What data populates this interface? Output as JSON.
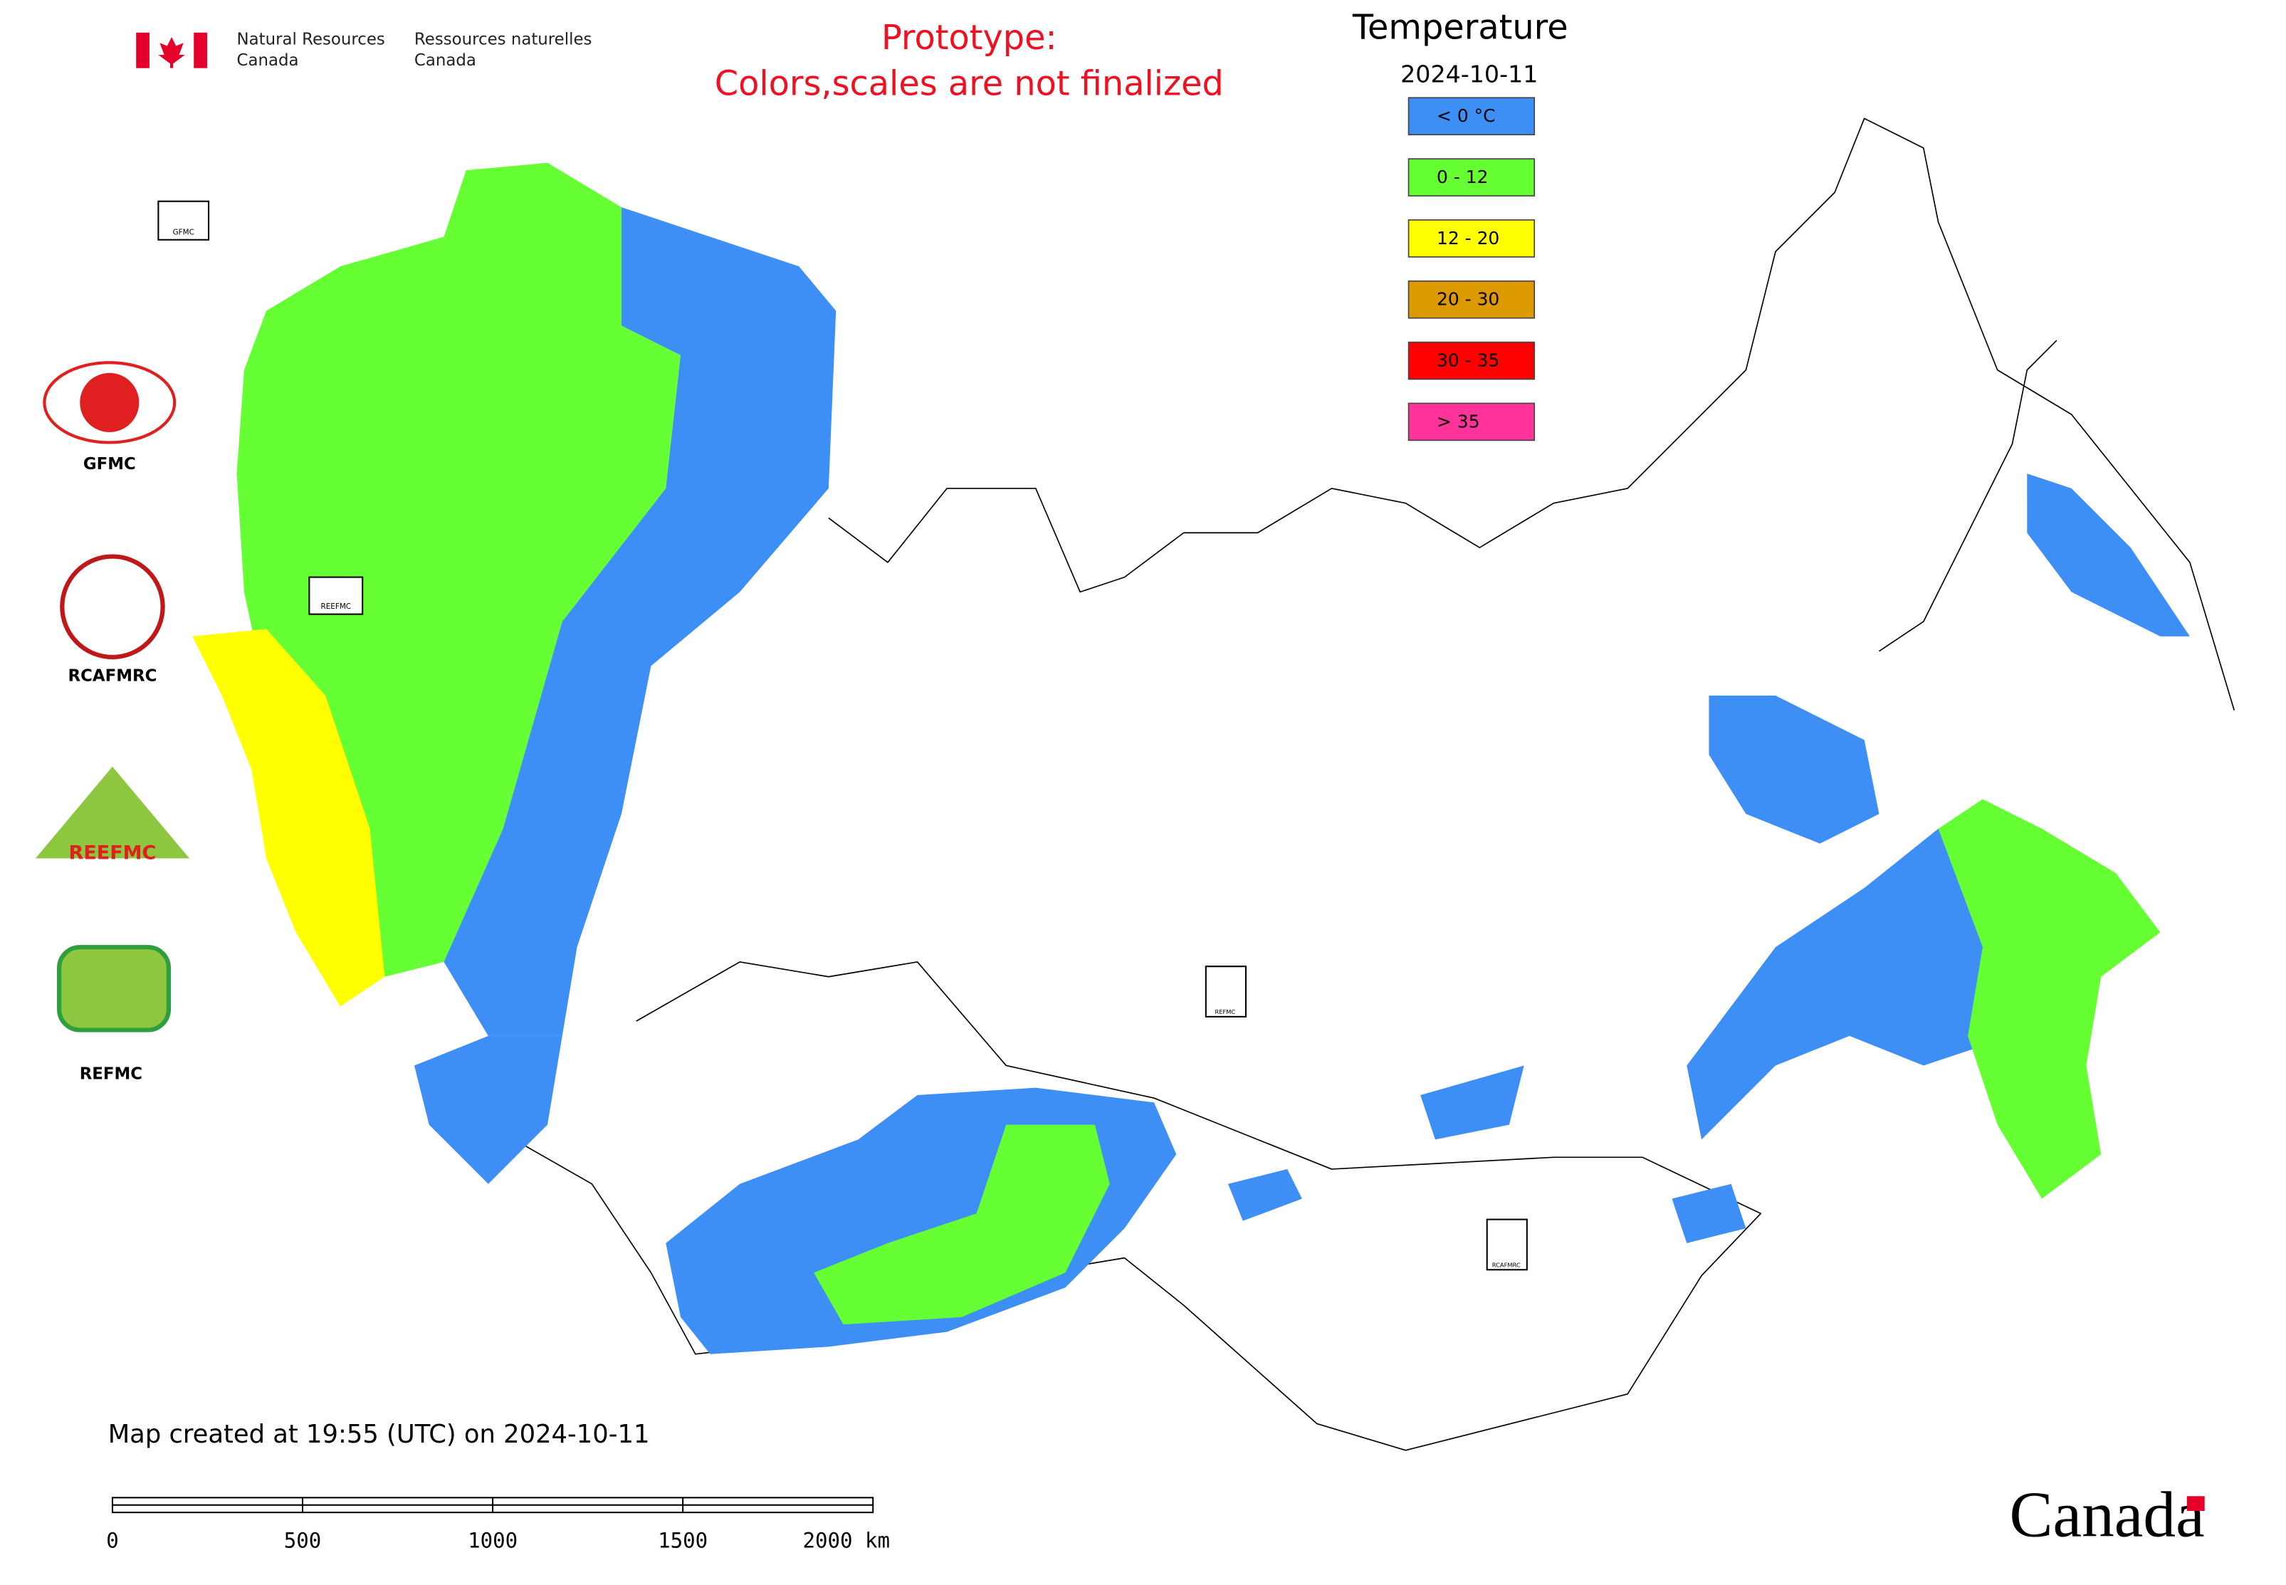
{
  "header": {
    "org_en_1": "Natural Resources",
    "org_en_2": "Canada",
    "org_fr_1": "Ressources naturelles",
    "org_fr_2": "Canada"
  },
  "notice": {
    "line1": "Prototype:",
    "line2": "Colors,scales are not finalized"
  },
  "legend": {
    "title": "Temperature",
    "date": "2024-10-11",
    "items": [
      {
        "label": "< 0 °C",
        "color": "#3d8ff5"
      },
      {
        "label": "0 - 12",
        "color": "#66ff33"
      },
      {
        "label": "12 - 20",
        "color": "#ffff00"
      },
      {
        "label": "20 - 30",
        "color": "#dd9900"
      },
      {
        "label": "30 - 35",
        "color": "#ff0000"
      },
      {
        "label": "> 35",
        "color": "#ff3399"
      }
    ]
  },
  "logos": [
    {
      "label": "GFMC"
    },
    {
      "label": "RCAFMRC"
    },
    {
      "label": "REEFMC"
    },
    {
      "label": "REFMC"
    }
  ],
  "map_badges": [
    {
      "label": "GFMC"
    },
    {
      "label": "REEFMC"
    },
    {
      "label": "REFMC"
    },
    {
      "label": "RCAFMRC"
    }
  ],
  "footer": {
    "created": "Map created at 19:55 (UTC) on 2024-10-11",
    "scale_labels": [
      "0",
      "500",
      "1000",
      "1500",
      "2000 km"
    ],
    "wordmark": "Canada"
  }
}
